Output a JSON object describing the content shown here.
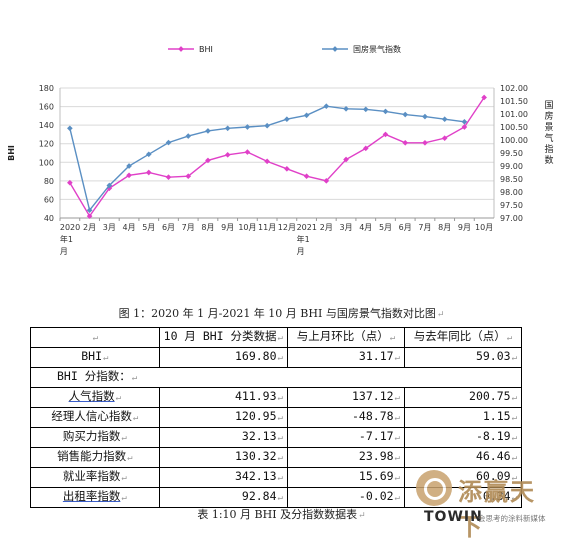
{
  "chart_data": {
    "type": "line",
    "categories": [
      "2020年1月",
      "2月",
      "3月",
      "4月",
      "5月",
      "6月",
      "7月",
      "8月",
      "9月",
      "10月",
      "11月",
      "12月",
      "2021年1月",
      "2月",
      "3月",
      "4月",
      "5月",
      "6月",
      "7月",
      "8月",
      "9月",
      "10月"
    ],
    "x_tick_labels": [
      [
        "2020",
        "年1",
        "月"
      ],
      [
        "2月"
      ],
      [
        "3月"
      ],
      [
        "4月"
      ],
      [
        "5月"
      ],
      [
        "6月"
      ],
      [
        "7月"
      ],
      [
        "8月"
      ],
      [
        "9月"
      ],
      [
        "10月"
      ],
      [
        "11月"
      ],
      [
        "12月"
      ],
      [
        "2021",
        "年1",
        "月"
      ],
      [
        "2月"
      ],
      [
        "3月"
      ],
      [
        "4月"
      ],
      [
        "5月"
      ],
      [
        "6月"
      ],
      [
        "7月"
      ],
      [
        "8月"
      ],
      [
        "9月"
      ],
      [
        "10月"
      ]
    ],
    "series": [
      {
        "name": "BHI",
        "axis": "left",
        "color": "#e040c8",
        "values": [
          78,
          42,
          72,
          86,
          89,
          84,
          85,
          102,
          108,
          111,
          101,
          93,
          85,
          80,
          103,
          115,
          130,
          121,
          121,
          126,
          138,
          169.8
        ]
      },
      {
        "name": "国房景气指数",
        "axis": "right",
        "color": "#5a8fc3",
        "values": [
          100.45,
          97.3,
          98.25,
          99.0,
          99.45,
          99.9,
          100.15,
          100.35,
          100.45,
          100.5,
          100.55,
          100.8,
          100.95,
          101.3,
          101.2,
          101.18,
          101.1,
          100.98,
          100.9,
          100.8,
          100.7,
          null
        ]
      }
    ],
    "y_left": {
      "label": "BHI",
      "min": 40,
      "max": 180,
      "step": 20,
      "ticks": [
        "40",
        "60",
        "80",
        "100",
        "120",
        "140",
        "160",
        "180"
      ]
    },
    "y_right": {
      "label": "国房景气指数",
      "min": 97.0,
      "max": 102.0,
      "step": 0.5,
      "ticks": [
        "97.00",
        "97.50",
        "98.00",
        "98.50",
        "99.00",
        "99.50",
        "100.00",
        "100.50",
        "101.00",
        "101.50",
        "102.00"
      ]
    },
    "grid": true,
    "legend_position": "top-center"
  },
  "figure_caption": "图 1：2020 年 1 月-2021 年 10 月 BHI 与国房景气指数对比图",
  "table": {
    "headers": [
      "",
      "10 月 BHI 分类数据",
      "与上月环比（点）",
      "与去年同比（点）"
    ],
    "bhi_row": {
      "label": "BHI",
      "values": [
        "169.80",
        "31.17",
        "59.03"
      ]
    },
    "section_label": "BHI 分指数：",
    "rows": [
      {
        "label": "人气指数",
        "values": [
          "411.93",
          "137.12",
          "200.75"
        ]
      },
      {
        "label": "经理人信心指数",
        "values": [
          "120.95",
          "-48.78",
          "1.15"
        ]
      },
      {
        "label": "购买力指数",
        "values": [
          "32.13",
          "-7.17",
          "-8.19"
        ]
      },
      {
        "label": "销售能力指数",
        "values": [
          "130.32",
          "23.98",
          "46.46"
        ]
      },
      {
        "label": "就业率指数",
        "values": [
          "342.13",
          "15.69",
          "60.09"
        ]
      },
      {
        "label": "出租率指数",
        "values": [
          "92.84",
          "-0.02",
          "0.34"
        ]
      }
    ]
  },
  "table_caption": "表 1:10 月 BHI 及分指数数据表",
  "watermark": {
    "chinese": "添赢天下",
    "brand": "TOWIN",
    "tagline": "会思考的涂料新媒体",
    "accent": "#c8a26e"
  }
}
